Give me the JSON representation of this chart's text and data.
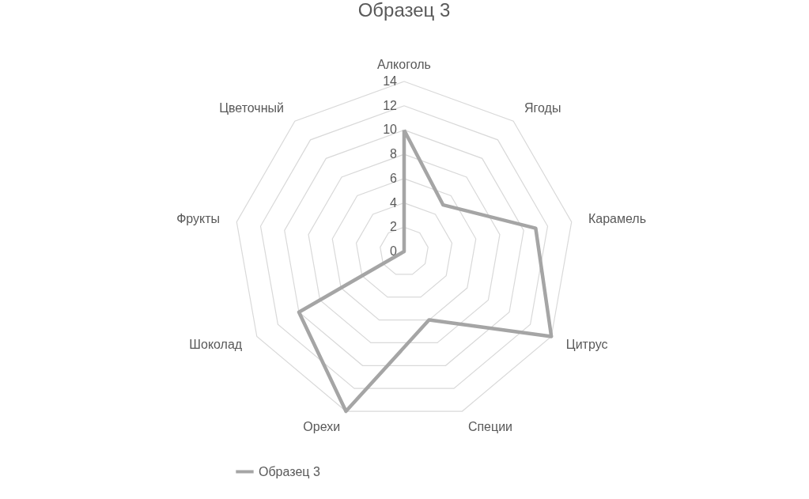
{
  "chart_data": {
    "type": "radar",
    "title": "Образец 3",
    "categories": [
      "Алкоголь",
      "Ягоды",
      "Карамель",
      "Цитрус",
      "Специи",
      "Орехи",
      "Шоколад",
      "Фрукты",
      "Цветочный"
    ],
    "series": [
      {
        "name": "Образец 3",
        "color": "#a5a5a5",
        "values": [
          10,
          5,
          11,
          14,
          6,
          14,
          10,
          0,
          0
        ]
      }
    ],
    "ylim": [
      0,
      14
    ],
    "yticks": [
      0,
      2,
      4,
      6,
      8,
      10,
      12,
      14
    ],
    "grid": true,
    "legend": "bottom"
  }
}
